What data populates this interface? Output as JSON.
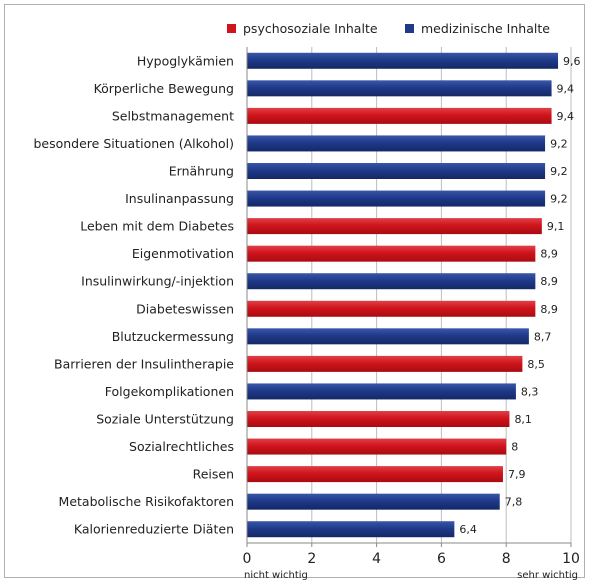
{
  "chart_data": {
    "type": "bar",
    "orientation": "horizontal",
    "categories": [
      "Hypoglykämien",
      "Körperliche Bewegung",
      "Selbstmanagement",
      "besondere Situationen (Alkohol)",
      "Ernährung",
      "Insulinanpassung",
      "Leben mit dem Diabetes",
      "Eigenmotivation",
      "Insulinwirkung/-injektion",
      "Diabeteswissen",
      "Blutzuckermessung",
      "Barrieren der Insulintherapie",
      "Folgekomplikationen",
      "Soziale Unterstützung",
      "Sozialrechtliches",
      "Reisen",
      "Metabolische Risikofaktoren",
      "Kalorienreduzierte Diäten"
    ],
    "values": [
      9.6,
      9.4,
      9.4,
      9.2,
      9.2,
      9.2,
      9.1,
      8.9,
      8.9,
      8.9,
      8.7,
      8.5,
      8.3,
      8.1,
      8,
      7.9,
      7.8,
      6.4
    ],
    "value_labels": [
      "9,6",
      "9,4",
      "9,4",
      "9,2",
      "9,2",
      "9,2",
      "9,1",
      "8,9",
      "8,9",
      "8,9",
      "8,7",
      "8,5",
      "8,3",
      "8,1",
      "8",
      "7,9",
      "7,8",
      "6,4"
    ],
    "groups": [
      "medizinisch",
      "medizinisch",
      "psychosozial",
      "medizinisch",
      "medizinisch",
      "medizinisch",
      "psychosozial",
      "psychosozial",
      "medizinisch",
      "psychosozial",
      "medizinisch",
      "psychosozial",
      "medizinisch",
      "psychosozial",
      "psychosozial",
      "psychosozial",
      "medizinisch",
      "medizinisch"
    ],
    "series": [
      {
        "key": "psychosozial",
        "name": "psychosoziale Inhalte",
        "color": "#d0141c"
      },
      {
        "key": "medizinisch",
        "name": "medizinische Inhalte",
        "color": "#1f3a8a"
      }
    ],
    "xlim": [
      0,
      10
    ],
    "xticks": [
      0,
      2,
      4,
      6,
      8,
      10
    ],
    "x_anchor_left": "nicht wichtig",
    "x_anchor_right": "sehr wichtig",
    "grid": "vertical",
    "legend_position": "top-right"
  }
}
